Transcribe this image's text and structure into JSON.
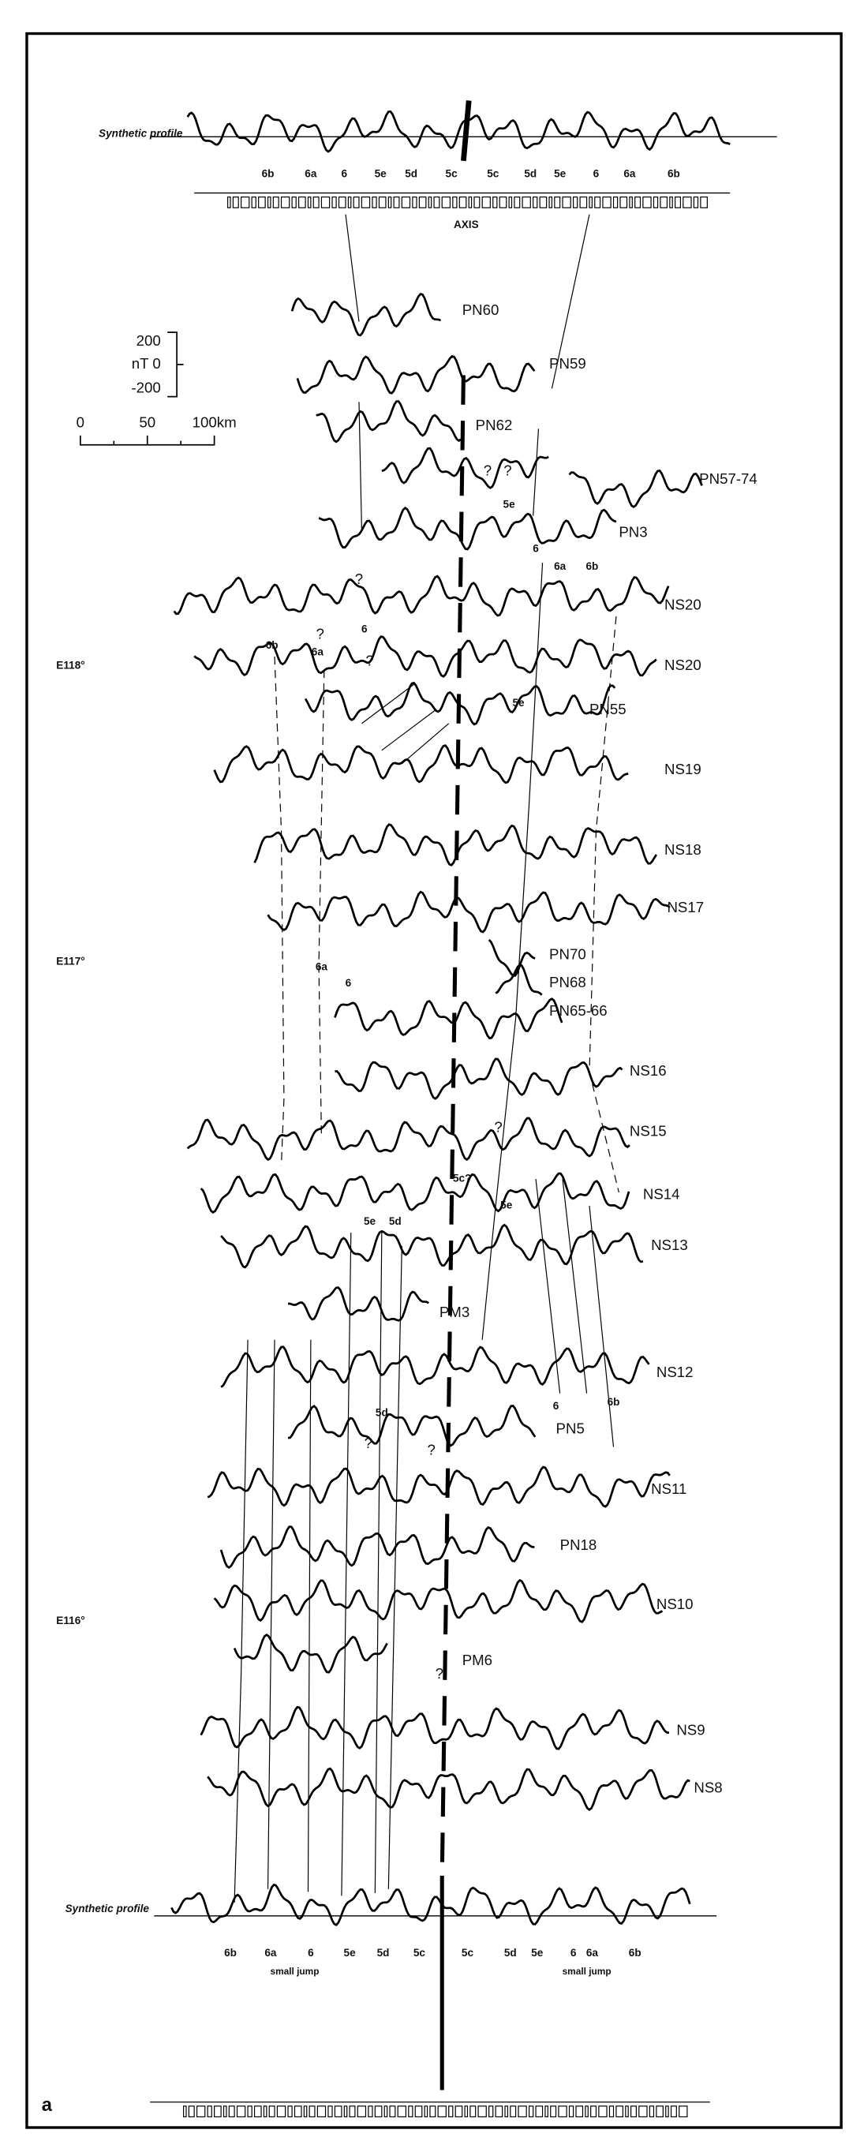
{
  "top_profile": {
    "label": "Synthetic profile",
    "chrons": [
      "6b",
      "6a",
      "6",
      "5e",
      "5d",
      "5c",
      "5c",
      "5d",
      "5e",
      "6",
      "6a",
      "6b"
    ],
    "axis": "AXIS"
  },
  "scale": {
    "nt": [
      "200",
      "nT 0",
      "-200"
    ],
    "km": [
      "0",
      "50",
      "100km"
    ]
  },
  "longitudes": [
    "E118°",
    "E117°",
    "E116°"
  ],
  "profiles": [
    "PN60",
    "PN59",
    "PN62",
    "PN57-74",
    "PN3",
    "NS20",
    "NS20",
    "PN55",
    "NS19",
    "NS18",
    "NS17",
    "PN70",
    "PN68",
    "PN65-66",
    "NS16",
    "NS15",
    "NS14",
    "NS13",
    "PM3",
    "NS12",
    "PN5",
    "NS11",
    "PN18",
    "NS10",
    "PM6",
    "NS9",
    "NS8"
  ],
  "annotations": [
    "?",
    "?",
    "5e",
    "6",
    "6a",
    "6b",
    "?",
    "6b",
    "?",
    "6a",
    "6",
    "?",
    "5e",
    "6a",
    "6",
    "?",
    "5c?",
    "5e",
    "5e",
    "5d",
    "5d",
    "?",
    "?",
    "6",
    "6b",
    "?"
  ],
  "bottom_profile": {
    "label": "Synthetic profile",
    "chrons": [
      "6b",
      "6a",
      "6",
      "5e",
      "5d",
      "5c",
      "5c",
      "5d",
      "5e",
      "6",
      "6a",
      "6b"
    ],
    "jumps": [
      "small jump",
      "small jump"
    ]
  },
  "panel_label": "a"
}
